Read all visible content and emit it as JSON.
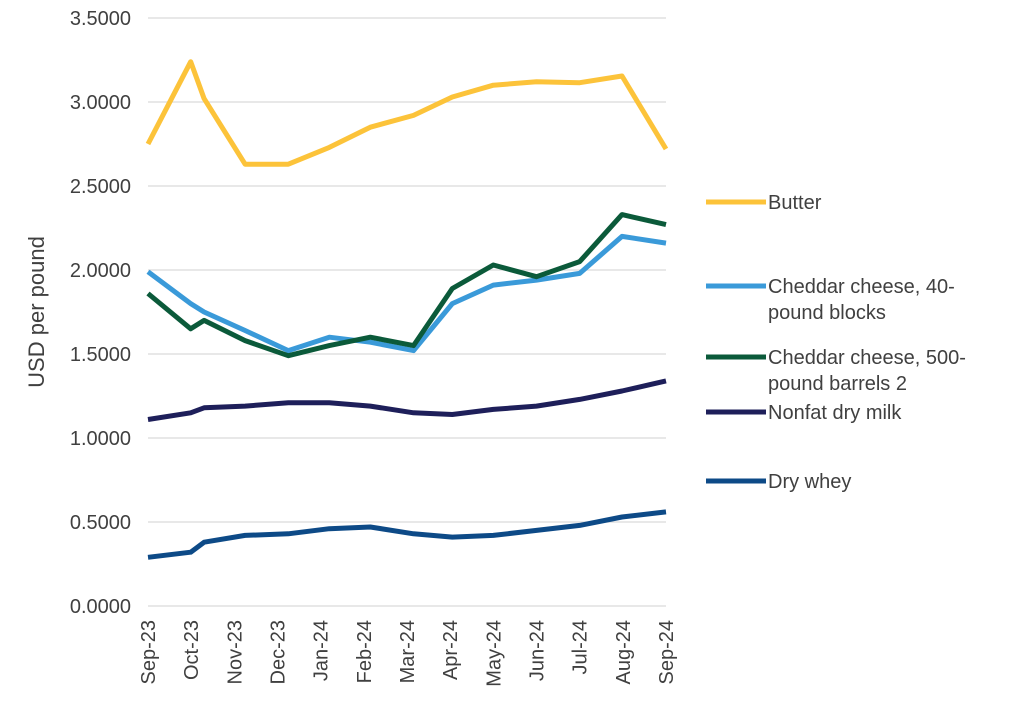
{
  "chart_data": {
    "type": "line",
    "title": "",
    "xlabel": "",
    "ylabel": "USD per pound",
    "ylim": [
      0,
      3.5
    ],
    "yticks": [
      "0.0000",
      "0.5000",
      "1.0000",
      "1.5000",
      "2.0000",
      "2.5000",
      "3.0000",
      "3.5000"
    ],
    "grid": "horizontal",
    "legend_position": "right",
    "x_ticks": [
      "Sep-23",
      "Oct-23",
      "Nov-23",
      "Dec-23",
      "Jan-24",
      "Feb-24",
      "Mar-24",
      "Apr-24",
      "May-24",
      "Jun-24",
      "Jul-24",
      "Aug-24",
      "Sep-24"
    ],
    "x_tick_at": [
      "2023-09",
      "2023-10",
      "2023-11",
      "2023-12",
      "2024-01",
      "2024-02",
      "2024-03",
      "2024-04",
      "2024-05",
      "2024-06",
      "2024-07",
      "2024-08",
      "2024-09"
    ],
    "x": [
      "2023-09",
      "2023-10",
      "2023-10b",
      "2023-11",
      "2023-12",
      "2024-01",
      "2024-02",
      "2024-03",
      "2024-04",
      "2024-05",
      "2024-06",
      "2024-07",
      "2024-08",
      "2024-09"
    ],
    "x_position": [
      0,
      0.99,
      1.3,
      2.25,
      3.25,
      4.2,
      5.15,
      6.15,
      7.05,
      8.0,
      9.0,
      10.0,
      10.98,
      12.0
    ],
    "series": [
      {
        "name": "Butter",
        "color": "#FCC33A",
        "values": [
          2.75,
          3.24,
          3.02,
          2.63,
          2.63,
          2.73,
          2.85,
          2.92,
          3.03,
          3.1,
          3.12,
          3.115,
          3.155,
          2.72
        ]
      },
      {
        "name": "Cheddar cheese, 40-pound blocks",
        "legend_lines": [
          "Cheddar cheese, 40-",
          "pound blocks"
        ],
        "color": "#3A9AD9",
        "values": [
          1.99,
          1.8,
          1.75,
          1.64,
          1.52,
          1.6,
          1.57,
          1.52,
          1.8,
          1.91,
          1.94,
          1.98,
          2.2,
          2.16
        ]
      },
      {
        "name": "Cheddar cheese, 500-pound barrels 2",
        "legend_lines": [
          "Cheddar cheese, 500-",
          "pound barrels 2"
        ],
        "color": "#0B5A3A",
        "values": [
          1.86,
          1.65,
          1.7,
          1.58,
          1.49,
          1.55,
          1.6,
          1.55,
          1.89,
          2.03,
          1.96,
          2.05,
          2.33,
          2.27
        ]
      },
      {
        "name": "Nonfat dry milk",
        "color": "#1E1F5A",
        "values": [
          1.11,
          1.15,
          1.18,
          1.19,
          1.21,
          1.21,
          1.19,
          1.15,
          1.14,
          1.17,
          1.19,
          1.23,
          1.28,
          1.34
        ]
      },
      {
        "name": "Dry whey",
        "color": "#0D4A87",
        "values": [
          0.29,
          0.32,
          0.38,
          0.42,
          0.43,
          0.46,
          0.47,
          0.43,
          0.41,
          0.42,
          0.45,
          0.48,
          0.53,
          0.56
        ]
      }
    ]
  }
}
